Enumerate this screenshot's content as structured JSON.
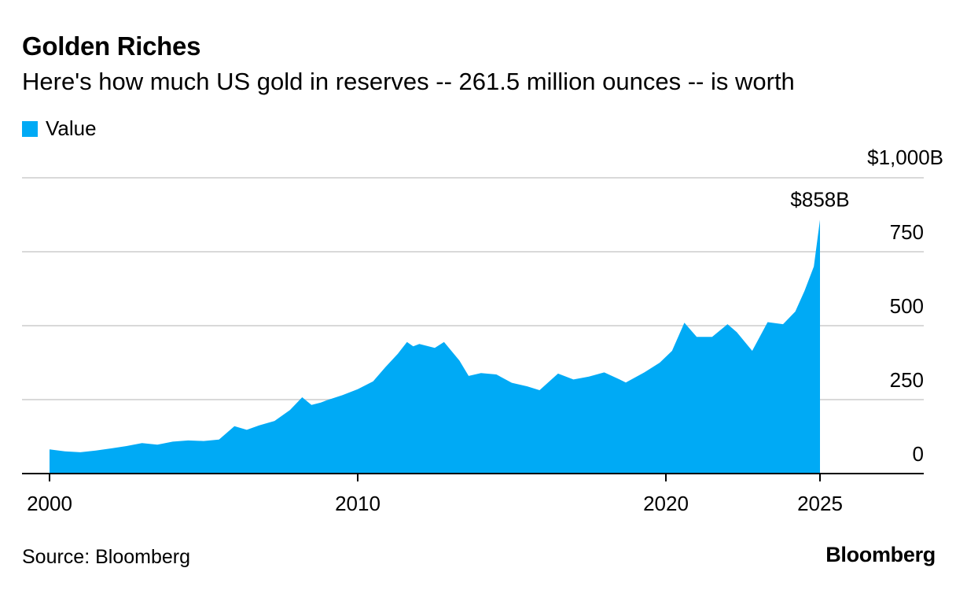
{
  "header": {
    "title": "Golden Riches",
    "subtitle": "Here's how much US gold in reserves -- 261.5 million ounces -- is worth"
  },
  "legend": {
    "label": "Value",
    "color": "#00aaf5"
  },
  "footer": {
    "source": "Source: Bloomberg",
    "brand": "Bloomberg"
  },
  "chart_data": {
    "type": "area",
    "title": "Golden Riches",
    "subtitle": "Here's how much US gold in reserves -- 261.5 million ounces -- is worth",
    "xlabel": "",
    "ylabel": "",
    "x_ticks": [
      {
        "value": 2000,
        "label": "2000"
      },
      {
        "value": 2010,
        "label": "2010"
      },
      {
        "value": 2020,
        "label": "2020"
      },
      {
        "value": 2025,
        "label": "2025"
      }
    ],
    "y_ticks": [
      {
        "value": 1000,
        "label": "$1,000B"
      },
      {
        "value": 750,
        "label": "750"
      },
      {
        "value": 500,
        "label": "500"
      },
      {
        "value": 250,
        "label": "250"
      },
      {
        "value": 0,
        "label": "0"
      }
    ],
    "xlim": [
      2000,
      2028.3
    ],
    "ylim": [
      0,
      1000
    ],
    "grid": true,
    "legend_position": "top-left",
    "annotation": {
      "x": 2025.0,
      "y": 858,
      "label": "$858B"
    },
    "series": [
      {
        "name": "Value",
        "color": "#00aaf5",
        "x": [
          2000.0,
          2000.5,
          2001.0,
          2001.5,
          2002.0,
          2002.5,
          2003.0,
          2003.5,
          2004.0,
          2004.5,
          2005.0,
          2005.5,
          2006.0,
          2006.4,
          2006.8,
          2007.3,
          2007.8,
          2008.2,
          2008.5,
          2008.8,
          2009.0,
          2009.5,
          2010.0,
          2010.5,
          2010.9,
          2011.3,
          2011.6,
          2011.8,
          2012.0,
          2012.5,
          2012.8,
          2013.3,
          2013.6,
          2014.0,
          2014.5,
          2015.0,
          2015.5,
          2015.9,
          2016.5,
          2017.0,
          2017.5,
          2018.0,
          2018.5,
          2018.7,
          2019.3,
          2019.8,
          2020.2,
          2020.6,
          2021.0,
          2021.5,
          2022.0,
          2022.3,
          2022.8,
          2023.3,
          2023.8,
          2024.2,
          2024.5,
          2024.8,
          2025.0
        ],
        "values": [
          82,
          75,
          72,
          78,
          85,
          93,
          103,
          98,
          108,
          112,
          110,
          115,
          160,
          148,
          163,
          178,
          215,
          258,
          232,
          240,
          248,
          265,
          285,
          312,
          360,
          405,
          445,
          430,
          438,
          425,
          445,
          382,
          330,
          340,
          335,
          307,
          295,
          282,
          338,
          318,
          328,
          342,
          318,
          308,
          342,
          375,
          415,
          510,
          462,
          462,
          505,
          478,
          415,
          512,
          505,
          548,
          618,
          700,
          858
        ]
      }
    ]
  }
}
